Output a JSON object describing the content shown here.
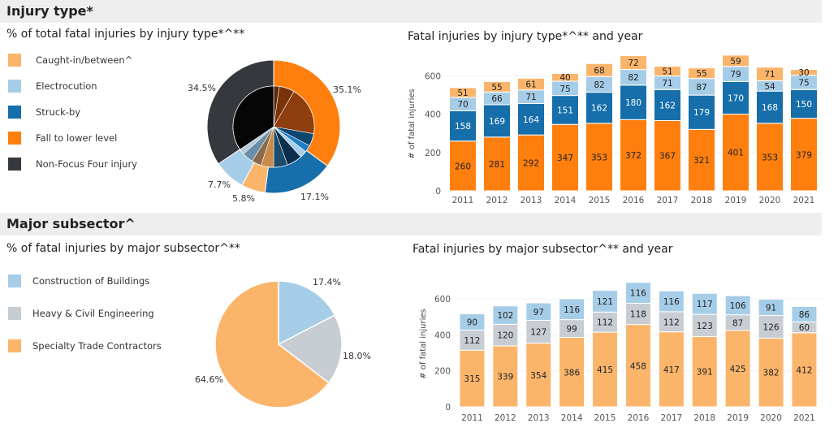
{
  "colors": {
    "caught": "#fbb56b",
    "electrocution": "#a6cde8",
    "struck": "#166eaa",
    "fall": "#ff7f0e",
    "nonfocus": "#35383d",
    "buildings": "#a6cde8",
    "heavy": "#c8cdd4",
    "specialty": "#fbb56b"
  },
  "sections": {
    "injury_type": {
      "title": "Injury type*"
    },
    "subsector": {
      "title": "Major subsector^"
    }
  },
  "legend_injury": [
    {
      "label": "Caught-in/between^",
      "color": "#fbb56b"
    },
    {
      "label": "Electrocution",
      "color": "#a6cde8"
    },
    {
      "label": "Struck-by",
      "color": "#166eaa"
    },
    {
      "label": "Fall to lower level",
      "color": "#ff7f0e"
    },
    {
      "label": "Non-Focus Four injury",
      "color": "#35383d"
    }
  ],
  "legend_subsector": [
    {
      "label": "Construction of Buildings",
      "color": "#a6cde8"
    },
    {
      "label": "Heavy & Civil Engineering",
      "color": "#c8cdd4"
    },
    {
      "label": "Specialty Trade Contractors",
      "color": "#fbb56b"
    }
  ],
  "chart_data": [
    {
      "id": "pie_injury",
      "type": "pie",
      "title": "% of total fatal injuries by injury type*^**",
      "slices": [
        {
          "name": "Fall to lower level",
          "value": 35.1,
          "label": "35.1%"
        },
        {
          "name": "Struck-by",
          "value": 17.1,
          "label": "17.1%"
        },
        {
          "name": "Caught-in/between^",
          "value": 5.8,
          "label": "5.8%"
        },
        {
          "name": "Electrocution",
          "value": 7.7,
          "label": "7.7%"
        },
        {
          "name": "Non-Focus Four injury",
          "value": 34.5,
          "label": "34.5%"
        }
      ]
    },
    {
      "id": "bar_injury",
      "type": "bar",
      "stacked": true,
      "title": "Fatal injuries by injury type*^** and year",
      "ylabel": "# of fatal injuries",
      "ylim": [
        0,
        700
      ],
      "yticks": [
        0,
        200,
        400,
        600
      ],
      "categories": [
        "2011",
        "2012",
        "2013",
        "2014",
        "2015",
        "2016",
        "2017",
        "2018",
        "2019",
        "2020",
        "2021"
      ],
      "series": [
        {
          "name": "Fall to lower level",
          "values": [
            260,
            281,
            292,
            347,
            353,
            372,
            367,
            321,
            401,
            353,
            379
          ]
        },
        {
          "name": "Struck-by",
          "values": [
            158,
            169,
            164,
            151,
            162,
            180,
            162,
            179,
            170,
            168,
            150
          ]
        },
        {
          "name": "Electrocution",
          "values": [
            70,
            66,
            71,
            75,
            82,
            82,
            71,
            87,
            79,
            54,
            75
          ]
        },
        {
          "name": "Caught-in/between^",
          "values": [
            51,
            55,
            61,
            40,
            68,
            72,
            51,
            55,
            59,
            71,
            30
          ]
        }
      ]
    },
    {
      "id": "pie_subsector",
      "type": "pie",
      "title": "% of fatal injuries by major subsector^**",
      "slices": [
        {
          "name": "Construction of Buildings",
          "value": 17.4,
          "label": "17.4%"
        },
        {
          "name": "Heavy & Civil Engineering",
          "value": 18.0,
          "label": "18.0%"
        },
        {
          "name": "Specialty Trade Contractors",
          "value": 64.6,
          "label": "64.6%"
        }
      ]
    },
    {
      "id": "bar_subsector",
      "type": "bar",
      "stacked": true,
      "title": "Fatal injuries by major subsector^** and year",
      "ylabel": "# of fatal injuries",
      "ylim": [
        0,
        700
      ],
      "yticks": [
        0,
        200,
        400,
        600
      ],
      "categories": [
        "2011",
        "2012",
        "2013",
        "2014",
        "2015",
        "2016",
        "2017",
        "2018",
        "2019",
        "2020",
        "2021"
      ],
      "series": [
        {
          "name": "Specialty Trade Contractors",
          "values": [
            315,
            339,
            354,
            386,
            415,
            458,
            417,
            391,
            425,
            382,
            412
          ]
        },
        {
          "name": "Heavy & Civil Engineering",
          "values": [
            112,
            120,
            127,
            99,
            112,
            118,
            112,
            123,
            87,
            126,
            60
          ]
        },
        {
          "name": "Construction of Buildings",
          "values": [
            90,
            102,
            97,
            116,
            121,
            116,
            116,
            117,
            106,
            91,
            86
          ]
        }
      ]
    }
  ]
}
